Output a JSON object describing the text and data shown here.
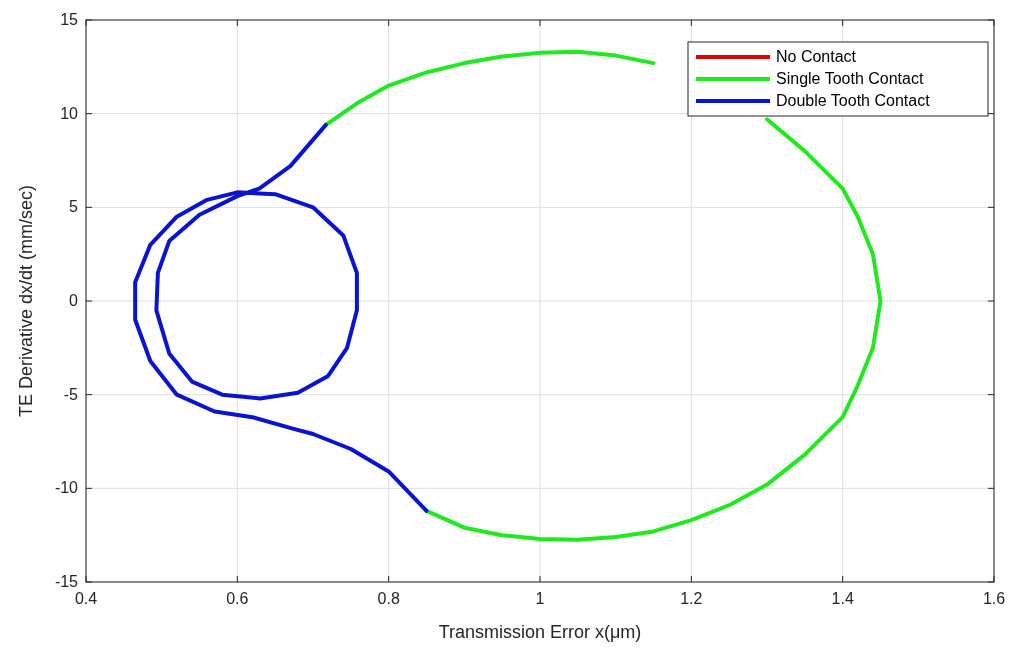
{
  "chart_data": {
    "type": "line",
    "xlabel": "Transmission Error x(μm)",
    "ylabel": "TE Derivative dx/dt (mm/sec)",
    "xlim": [
      0.4,
      1.6
    ],
    "ylim": [
      -15,
      15
    ],
    "xticks": [
      0.4,
      0.6,
      0.8,
      1,
      1.2,
      1.4,
      1.6
    ],
    "yticks": [
      -15,
      -10,
      -5,
      0,
      5,
      10,
      15
    ],
    "grid": true,
    "legend": "top right",
    "series": [
      {
        "name": "No Contact",
        "color": "#e00000"
      },
      {
        "name": "Single Tooth Contact",
        "color": "#22e822",
        "x": [
          0.717,
          0.76,
          0.8,
          0.85,
          0.9,
          0.95,
          1.0,
          1.05,
          1.1,
          1.15,
          1.2,
          1.25,
          1.3,
          1.35,
          1.4,
          1.42,
          1.44,
          1.45,
          1.44,
          1.42,
          1.4,
          1.35,
          1.3,
          1.25,
          1.2,
          1.15,
          1.1,
          1.05,
          1.0,
          0.95,
          0.9,
          0.85
        ],
        "values": [
          9.4,
          10.6,
          11.5,
          12.2,
          12.7,
          13.05,
          13.25,
          13.3,
          13.1,
          12.7,
          null,
          null,
          9.7,
          8.0,
          6.0,
          4.5,
          2.5,
          0,
          -2.5,
          -4.5,
          -6.2,
          -8.2,
          -9.8,
          -10.9,
          -11.7,
          -12.3,
          -12.6,
          -12.75,
          -12.7,
          -12.5,
          -12.1,
          -11.2
        ]
      },
      {
        "name": "Double Tooth Contact",
        "color": "#0a14d0",
        "x": [
          0.85,
          0.8,
          0.75,
          0.7,
          0.672,
          0.62,
          0.57,
          0.52,
          0.485,
          0.465,
          0.465,
          0.485,
          0.52,
          0.56,
          0.6,
          0.65,
          0.7,
          0.74,
          0.758,
          0.758,
          0.745,
          0.72,
          0.68,
          0.63,
          0.58,
          0.54,
          0.51,
          0.493,
          0.495,
          0.51,
          0.55,
          0.6,
          0.629,
          0.67,
          0.717
        ],
        "values": [
          -11.2,
          -9.1,
          -7.9,
          -7.1,
          -6.8,
          -6.2,
          -5.9,
          -5.0,
          -3.2,
          -1.0,
          1.0,
          3.0,
          4.5,
          5.4,
          5.8,
          5.7,
          5.0,
          3.5,
          1.5,
          -0.5,
          -2.5,
          -4.0,
          -4.9,
          -5.2,
          -5.0,
          -4.3,
          -2.8,
          -0.5,
          1.5,
          3.2,
          4.6,
          5.6,
          6.0,
          7.2,
          9.4
        ]
      }
    ]
  }
}
